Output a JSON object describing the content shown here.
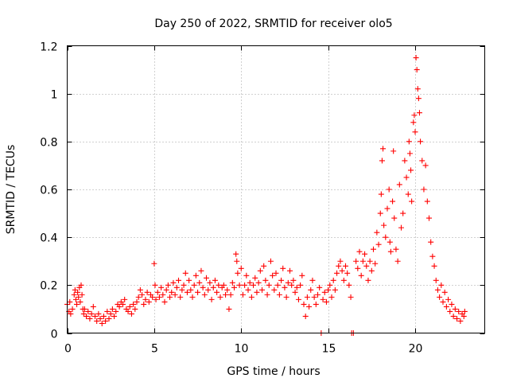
{
  "chart_data": {
    "type": "scatter",
    "title": "Day 250 of 2022, SRMTID for receiver olo5",
    "xlabel": "GPS time / hours",
    "ylabel": "SRMTID / TECUs",
    "xlim": [
      0,
      24
    ],
    "ylim": [
      0,
      1.2
    ],
    "x_ticks": [
      0,
      5,
      10,
      15,
      20
    ],
    "x_tick_labels": [
      "0",
      "5",
      "10",
      "15",
      "20"
    ],
    "y_ticks": [
      0,
      0.2,
      0.4,
      0.6,
      0.8,
      1.0,
      1.2
    ],
    "y_tick_labels": [
      "0",
      "0.2",
      "0.4",
      "0.6",
      "0.8",
      "1",
      "1.2"
    ],
    "grid": true,
    "marker": "plus",
    "series": [
      {
        "name": "SRMTID",
        "color": "#ff0000",
        "points": [
          [
            0.0,
            0.12
          ],
          [
            0.1,
            0.09
          ],
          [
            0.15,
            0.13
          ],
          [
            0.2,
            0.08
          ],
          [
            0.3,
            0.1
          ],
          [
            0.4,
            0.16
          ],
          [
            0.45,
            0.18
          ],
          [
            0.5,
            0.14
          ],
          [
            0.55,
            0.12
          ],
          [
            0.6,
            0.17
          ],
          [
            0.65,
            0.15
          ],
          [
            0.7,
            0.19
          ],
          [
            0.75,
            0.13
          ],
          [
            0.8,
            0.2
          ],
          [
            0.85,
            0.16
          ],
          [
            0.9,
            0.1
          ],
          [
            0.95,
            0.08
          ],
          [
            1.0,
            0.1
          ],
          [
            1.1,
            0.07
          ],
          [
            1.2,
            0.09
          ],
          [
            1.3,
            0.06
          ],
          [
            1.4,
            0.08
          ],
          [
            1.5,
            0.11
          ],
          [
            1.6,
            0.07
          ],
          [
            1.7,
            0.05
          ],
          [
            1.8,
            0.08
          ],
          [
            1.9,
            0.06
          ],
          [
            2.0,
            0.04
          ],
          [
            2.1,
            0.07
          ],
          [
            2.2,
            0.05
          ],
          [
            2.3,
            0.09
          ],
          [
            2.4,
            0.06
          ],
          [
            2.5,
            0.08
          ],
          [
            2.6,
            0.1
          ],
          [
            2.7,
            0.07
          ],
          [
            2.8,
            0.09
          ],
          [
            2.9,
            0.12
          ],
          [
            3.0,
            0.11
          ],
          [
            3.1,
            0.13
          ],
          [
            3.2,
            0.12
          ],
          [
            3.3,
            0.14
          ],
          [
            3.4,
            0.1
          ],
          [
            3.5,
            0.09
          ],
          [
            3.6,
            0.11
          ],
          [
            3.7,
            0.08
          ],
          [
            3.8,
            0.12
          ],
          [
            3.9,
            0.1
          ],
          [
            4.0,
            0.13
          ],
          [
            4.1,
            0.15
          ],
          [
            4.2,
            0.18
          ],
          [
            4.3,
            0.16
          ],
          [
            4.4,
            0.12
          ],
          [
            4.5,
            0.14
          ],
          [
            4.6,
            0.17
          ],
          [
            4.7,
            0.13
          ],
          [
            4.8,
            0.16
          ],
          [
            4.9,
            0.15
          ],
          [
            5.0,
            0.29
          ],
          [
            5.05,
            0.2
          ],
          [
            5.1,
            0.14
          ],
          [
            5.2,
            0.17
          ],
          [
            5.3,
            0.15
          ],
          [
            5.4,
            0.19
          ],
          [
            5.5,
            0.16
          ],
          [
            5.6,
            0.13
          ],
          [
            5.7,
            0.18
          ],
          [
            5.8,
            0.2
          ],
          [
            5.9,
            0.15
          ],
          [
            6.0,
            0.17
          ],
          [
            6.1,
            0.21
          ],
          [
            6.2,
            0.16
          ],
          [
            6.3,
            0.19
          ],
          [
            6.4,
            0.22
          ],
          [
            6.5,
            0.15
          ],
          [
            6.6,
            0.18
          ],
          [
            6.7,
            0.2
          ],
          [
            6.8,
            0.25
          ],
          [
            6.9,
            0.17
          ],
          [
            7.0,
            0.22
          ],
          [
            7.1,
            0.18
          ],
          [
            7.2,
            0.15
          ],
          [
            7.3,
            0.2
          ],
          [
            7.4,
            0.24
          ],
          [
            7.5,
            0.17
          ],
          [
            7.6,
            0.21
          ],
          [
            7.7,
            0.26
          ],
          [
            7.8,
            0.19
          ],
          [
            7.9,
            0.16
          ],
          [
            8.0,
            0.23
          ],
          [
            8.1,
            0.18
          ],
          [
            8.2,
            0.21
          ],
          [
            8.3,
            0.14
          ],
          [
            8.4,
            0.19
          ],
          [
            8.5,
            0.22
          ],
          [
            8.6,
            0.17
          ],
          [
            8.7,
            0.2
          ],
          [
            8.8,
            0.15
          ],
          [
            8.9,
            0.19
          ],
          [
            9.0,
            0.2
          ],
          [
            9.1,
            0.16
          ],
          [
            9.2,
            0.18
          ],
          [
            9.3,
            0.1
          ],
          [
            9.4,
            0.16
          ],
          [
            9.5,
            0.21
          ],
          [
            9.6,
            0.19
          ],
          [
            9.7,
            0.33
          ],
          [
            9.75,
            0.3
          ],
          [
            9.8,
            0.25
          ],
          [
            9.9,
            0.2
          ],
          [
            10.0,
            0.27
          ],
          [
            10.1,
            0.16
          ],
          [
            10.2,
            0.2
          ],
          [
            10.3,
            0.24
          ],
          [
            10.4,
            0.18
          ],
          [
            10.5,
            0.21
          ],
          [
            10.6,
            0.15
          ],
          [
            10.7,
            0.2
          ],
          [
            10.8,
            0.23
          ],
          [
            10.9,
            0.17
          ],
          [
            11.0,
            0.21
          ],
          [
            11.1,
            0.26
          ],
          [
            11.2,
            0.18
          ],
          [
            11.3,
            0.28
          ],
          [
            11.4,
            0.22
          ],
          [
            11.5,
            0.16
          ],
          [
            11.6,
            0.2
          ],
          [
            11.7,
            0.3
          ],
          [
            11.8,
            0.24
          ],
          [
            11.9,
            0.18
          ],
          [
            12.0,
            0.25
          ],
          [
            12.1,
            0.2
          ],
          [
            12.2,
            0.16
          ],
          [
            12.3,
            0.22
          ],
          [
            12.4,
            0.27
          ],
          [
            12.5,
            0.19
          ],
          [
            12.6,
            0.15
          ],
          [
            12.7,
            0.21
          ],
          [
            12.8,
            0.26
          ],
          [
            12.9,
            0.2
          ],
          [
            13.0,
            0.22
          ],
          [
            13.1,
            0.17
          ],
          [
            13.2,
            0.19
          ],
          [
            13.3,
            0.14
          ],
          [
            13.4,
            0.2
          ],
          [
            13.5,
            0.24
          ],
          [
            13.6,
            0.12
          ],
          [
            13.7,
            0.07
          ],
          [
            13.8,
            0.15
          ],
          [
            13.9,
            0.11
          ],
          [
            14.0,
            0.18
          ],
          [
            14.1,
            0.22
          ],
          [
            14.2,
            0.15
          ],
          [
            14.3,
            0.12
          ],
          [
            14.4,
            0.16
          ],
          [
            14.5,
            0.19
          ],
          [
            14.6,
            0.0
          ],
          [
            14.7,
            0.14
          ],
          [
            14.8,
            0.17
          ],
          [
            14.9,
            0.13
          ],
          [
            15.0,
            0.18
          ],
          [
            15.1,
            0.2
          ],
          [
            15.2,
            0.15
          ],
          [
            15.3,
            0.22
          ],
          [
            15.4,
            0.18
          ],
          [
            15.5,
            0.25
          ],
          [
            15.6,
            0.28
          ],
          [
            15.7,
            0.3
          ],
          [
            15.8,
            0.26
          ],
          [
            15.9,
            0.22
          ],
          [
            16.0,
            0.28
          ],
          [
            16.1,
            0.25
          ],
          [
            16.2,
            0.2
          ],
          [
            16.3,
            0.15
          ],
          [
            16.35,
            0.0
          ],
          [
            16.45,
            0.0
          ],
          [
            16.6,
            0.3
          ],
          [
            16.7,
            0.27
          ],
          [
            16.8,
            0.34
          ],
          [
            16.9,
            0.24
          ],
          [
            17.0,
            0.3
          ],
          [
            17.1,
            0.33
          ],
          [
            17.2,
            0.28
          ],
          [
            17.3,
            0.22
          ],
          [
            17.4,
            0.3
          ],
          [
            17.5,
            0.26
          ],
          [
            17.6,
            0.35
          ],
          [
            17.7,
            0.29
          ],
          [
            17.8,
            0.42
          ],
          [
            17.9,
            0.37
          ],
          [
            18.0,
            0.5
          ],
          [
            18.05,
            0.58
          ],
          [
            18.1,
            0.72
          ],
          [
            18.15,
            0.77
          ],
          [
            18.2,
            0.45
          ],
          [
            18.3,
            0.4
          ],
          [
            18.4,
            0.52
          ],
          [
            18.5,
            0.6
          ],
          [
            18.55,
            0.38
          ],
          [
            18.6,
            0.34
          ],
          [
            18.7,
            0.55
          ],
          [
            18.75,
            0.76
          ],
          [
            18.8,
            0.48
          ],
          [
            18.9,
            0.35
          ],
          [
            19.0,
            0.3
          ],
          [
            19.1,
            0.62
          ],
          [
            19.2,
            0.44
          ],
          [
            19.3,
            0.5
          ],
          [
            19.4,
            0.72
          ],
          [
            19.5,
            0.65
          ],
          [
            19.6,
            0.58
          ],
          [
            19.65,
            0.8
          ],
          [
            19.7,
            0.75
          ],
          [
            19.75,
            0.68
          ],
          [
            19.8,
            0.55
          ],
          [
            19.9,
            0.88
          ],
          [
            19.95,
            0.91
          ],
          [
            20.0,
            0.84
          ],
          [
            20.05,
            1.15
          ],
          [
            20.1,
            1.1
          ],
          [
            20.15,
            1.02
          ],
          [
            20.2,
            0.98
          ],
          [
            20.25,
            0.92
          ],
          [
            20.3,
            0.8
          ],
          [
            20.4,
            0.72
          ],
          [
            20.5,
            0.6
          ],
          [
            20.6,
            0.7
          ],
          [
            20.7,
            0.55
          ],
          [
            20.8,
            0.48
          ],
          [
            20.9,
            0.38
          ],
          [
            21.0,
            0.32
          ],
          [
            21.1,
            0.28
          ],
          [
            21.2,
            0.22
          ],
          [
            21.3,
            0.18
          ],
          [
            21.4,
            0.15
          ],
          [
            21.5,
            0.2
          ],
          [
            21.6,
            0.13
          ],
          [
            21.7,
            0.17
          ],
          [
            21.8,
            0.11
          ],
          [
            21.9,
            0.14
          ],
          [
            22.0,
            0.09
          ],
          [
            22.1,
            0.12
          ],
          [
            22.2,
            0.07
          ],
          [
            22.3,
            0.1
          ],
          [
            22.4,
            0.06
          ],
          [
            22.5,
            0.09
          ],
          [
            22.6,
            0.05
          ],
          [
            22.7,
            0.08
          ],
          [
            22.8,
            0.07
          ],
          [
            22.85,
            0.09
          ]
        ]
      }
    ]
  }
}
